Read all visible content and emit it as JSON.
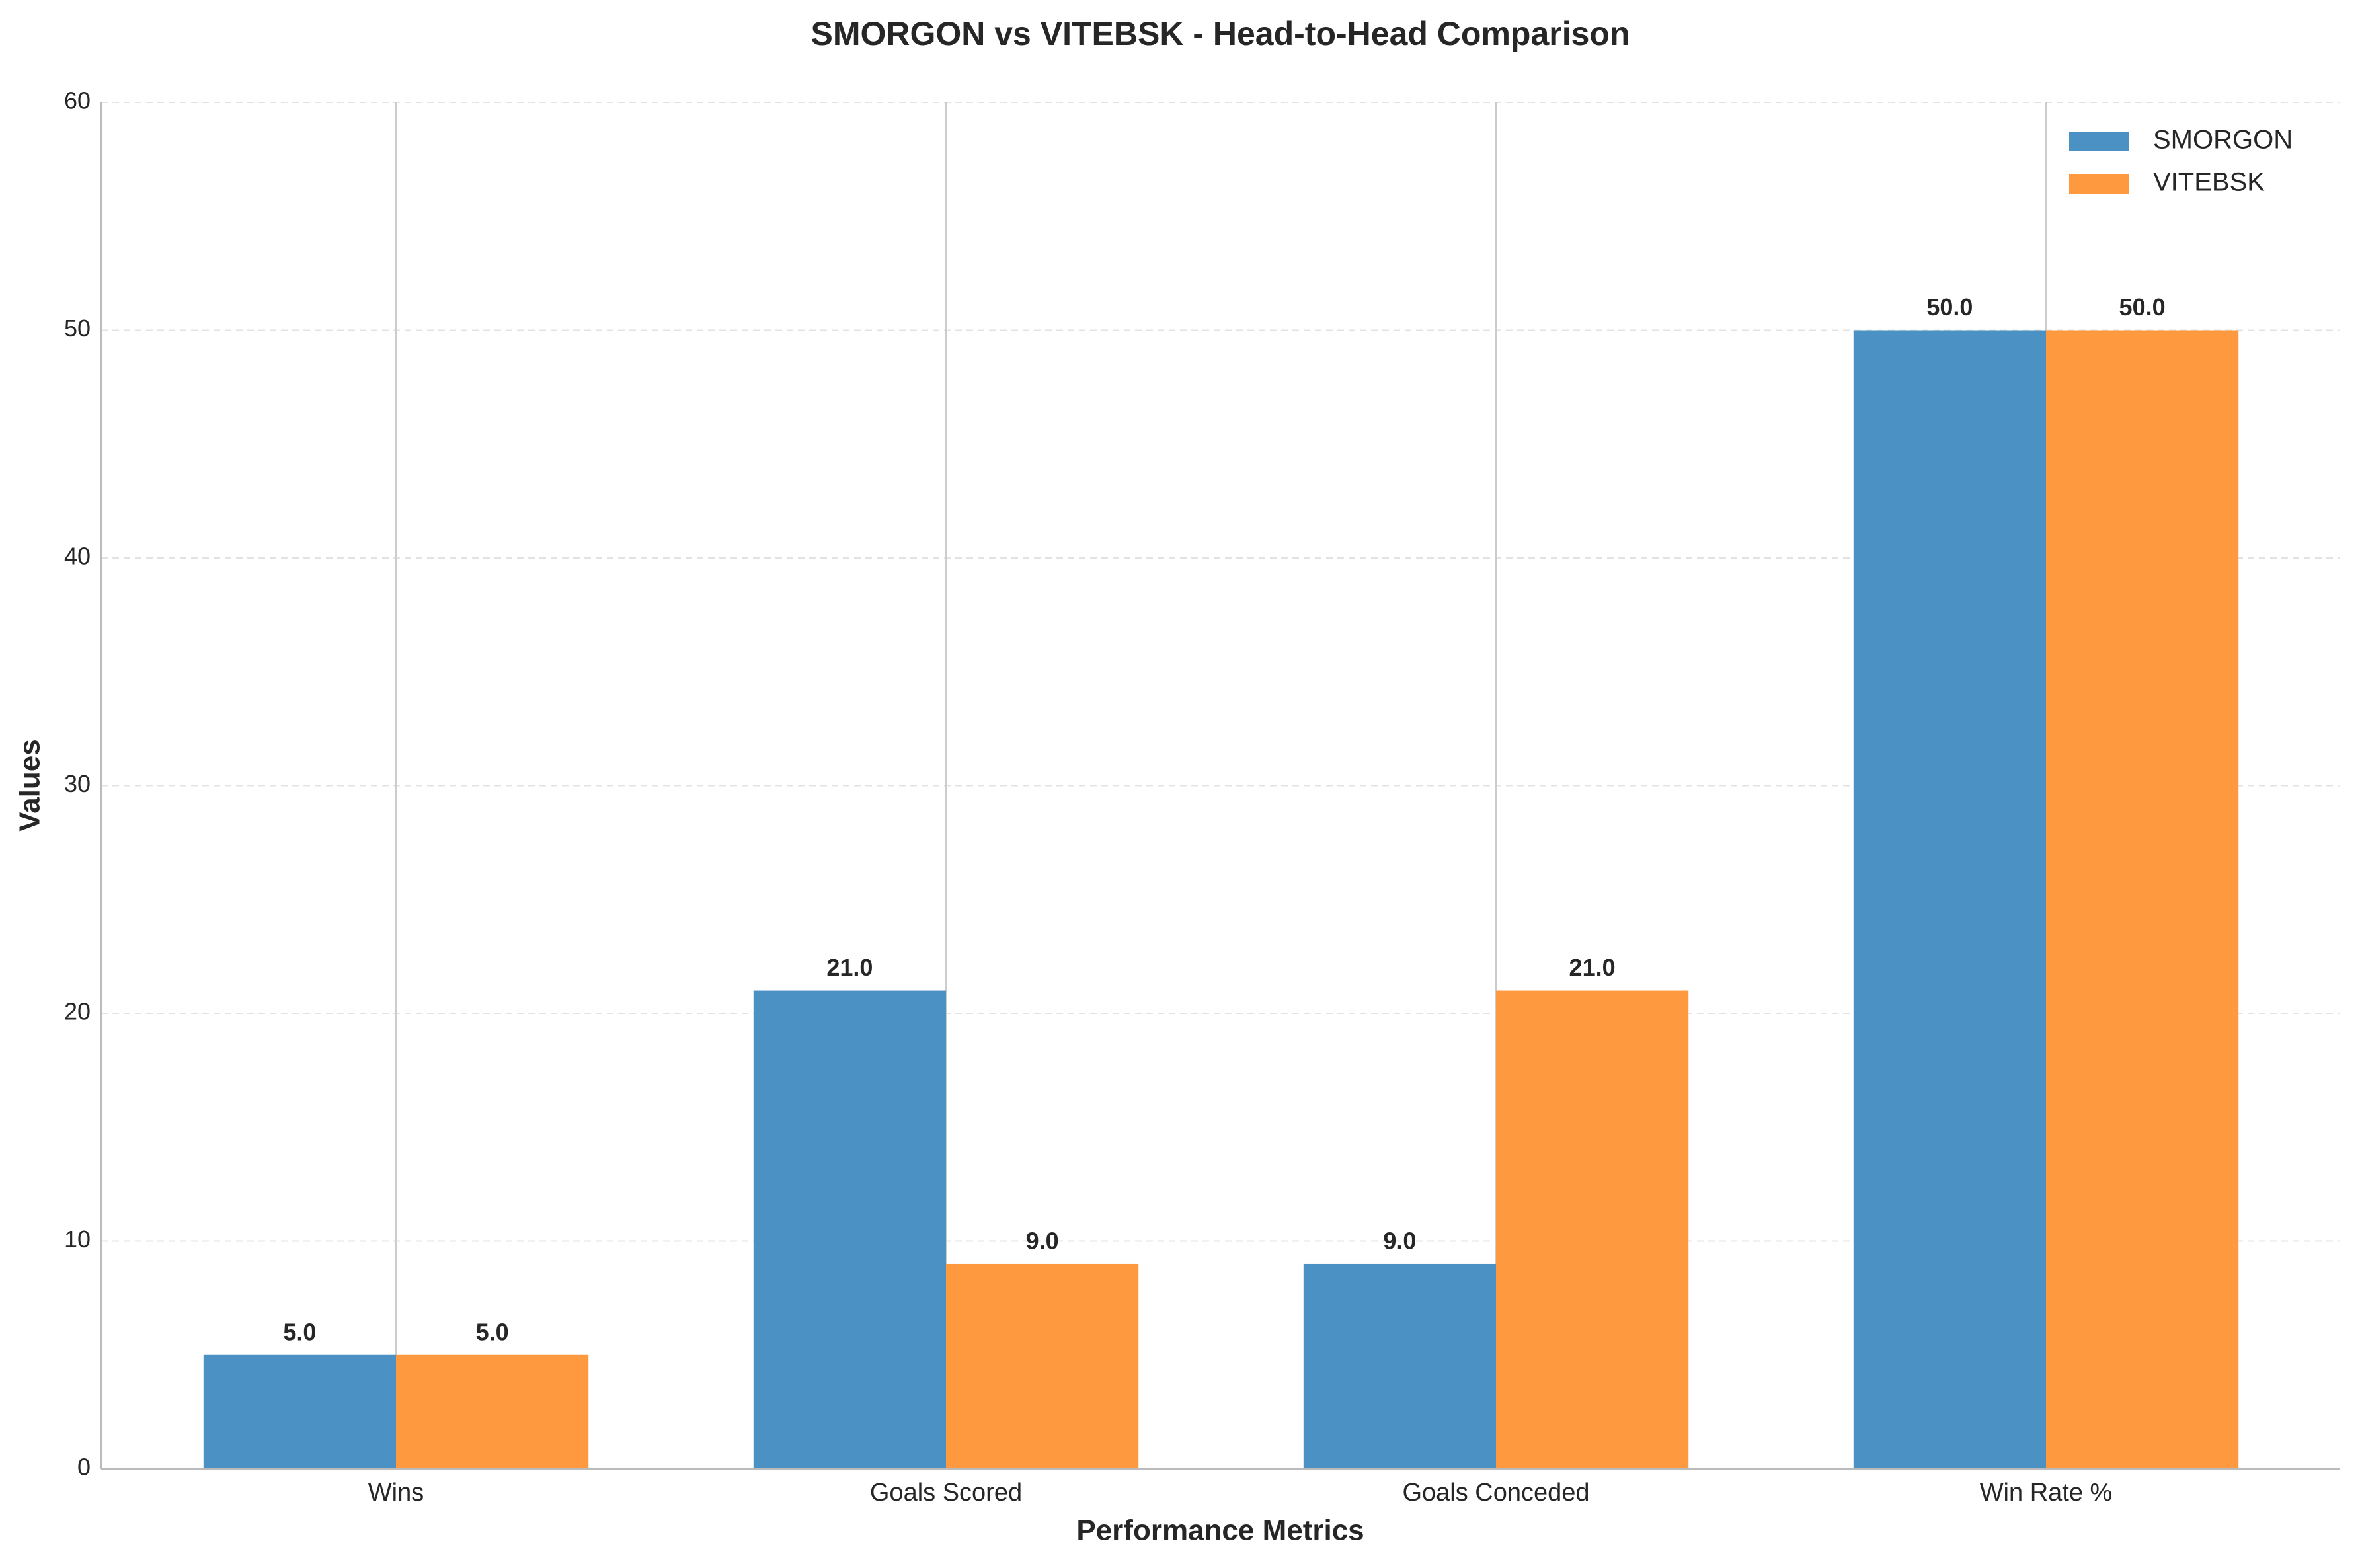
{
  "chart_data": {
    "type": "bar",
    "title": "SMORGON vs VITEBSK - Head-to-Head Comparison",
    "x_label": "Performance Metrics",
    "y_label": "Values",
    "categories": [
      "Wins",
      "Goals Scored",
      "Goals Conceded",
      "Win Rate %"
    ],
    "series": [
      {
        "name": "SMORGON",
        "color": "#4c91c3",
        "values": [
          5,
          21,
          9,
          50
        ],
        "value_labels": [
          "5.0",
          "21.0",
          "9.0",
          "50.0"
        ]
      },
      {
        "name": "VITEBSK",
        "color": "#ff9940",
        "values": [
          5,
          9,
          21,
          50
        ],
        "value_labels": [
          "5.0",
          "9.0",
          "21.0",
          "50.0"
        ]
      }
    ],
    "ylim": [
      0,
      60
    ],
    "yticks": [
      0,
      10,
      20,
      30,
      40,
      50,
      60
    ],
    "grid": true,
    "legend": "upper right"
  }
}
